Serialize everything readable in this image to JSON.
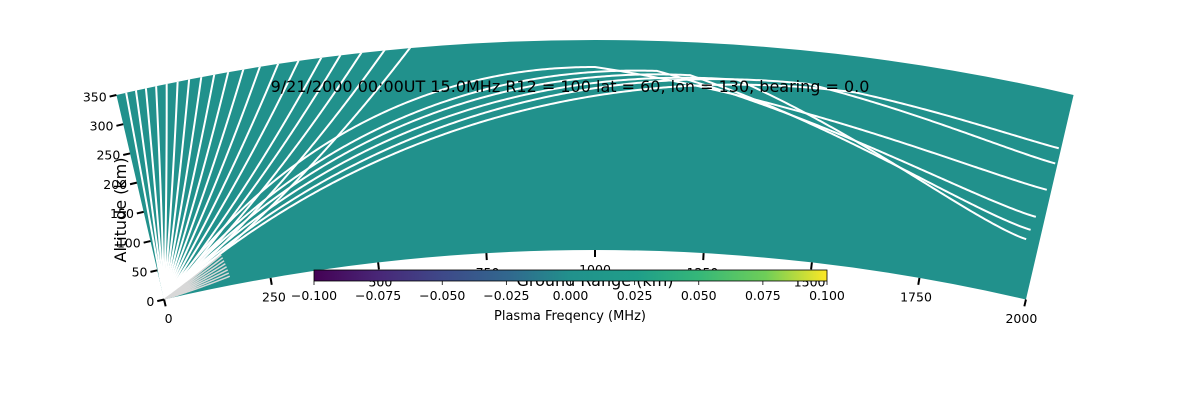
{
  "chart_data": {
    "type": "ray-trace",
    "title": "9/21/2000  00:00UT   15.0MHz   R12 = 100   lat = 60, lon = 130, bearing = 0.0",
    "xlabel": "Ground Range (km)",
    "ylabel": "Altitude (km)",
    "xlim": [
      0,
      2000
    ],
    "ylim": [
      0,
      350
    ],
    "xticks": [
      "0",
      "250",
      "500",
      "750",
      "1000",
      "1250",
      "1500",
      "1750",
      "2000"
    ],
    "yticks": [
      "0",
      "50",
      "100",
      "150",
      "200",
      "250",
      "300",
      "350"
    ],
    "background_value": 0.0,
    "background_color": "#21918c",
    "ray_color": "#ffffff",
    "colorbar": {
      "label": "Plasma Freqency (MHz)",
      "min": -0.1,
      "max": 0.1,
      "ticks": [
        "−0.100",
        "−0.075",
        "−0.050",
        "−0.025",
        "0.000",
        "0.025",
        "0.050",
        "0.075",
        "0.100"
      ],
      "colormap": "viridis"
    },
    "rays": {
      "escaping_elevation_angles_deg": [
        86,
        82,
        78,
        74,
        70,
        66,
        62,
        58,
        54,
        50,
        46,
        42,
        38,
        34,
        30,
        27,
        24,
        21,
        18
      ],
      "refracted": [
        {
          "apex_range": 1000,
          "apex_alt": 305,
          "exit_range": 1990,
          "exit_alt": 186
        },
        {
          "apex_range": 1130,
          "apex_alt": 300,
          "exit_range": 1980,
          "exit_alt": 138
        },
        {
          "apex_range": 1200,
          "apex_alt": 295,
          "exit_range": 1975,
          "exit_alt": 115
        },
        {
          "apex_range": 1300,
          "apex_alt": 292,
          "exit_range": 1972,
          "exit_alt": 98
        },
        {
          "apex_range": 1450,
          "apex_alt": 295,
          "exit_range": 1995,
          "exit_alt": 232
        },
        {
          "apex_range": 1550,
          "apex_alt": 290,
          "exit_range": 1995,
          "exit_alt": 258
        }
      ]
    }
  }
}
